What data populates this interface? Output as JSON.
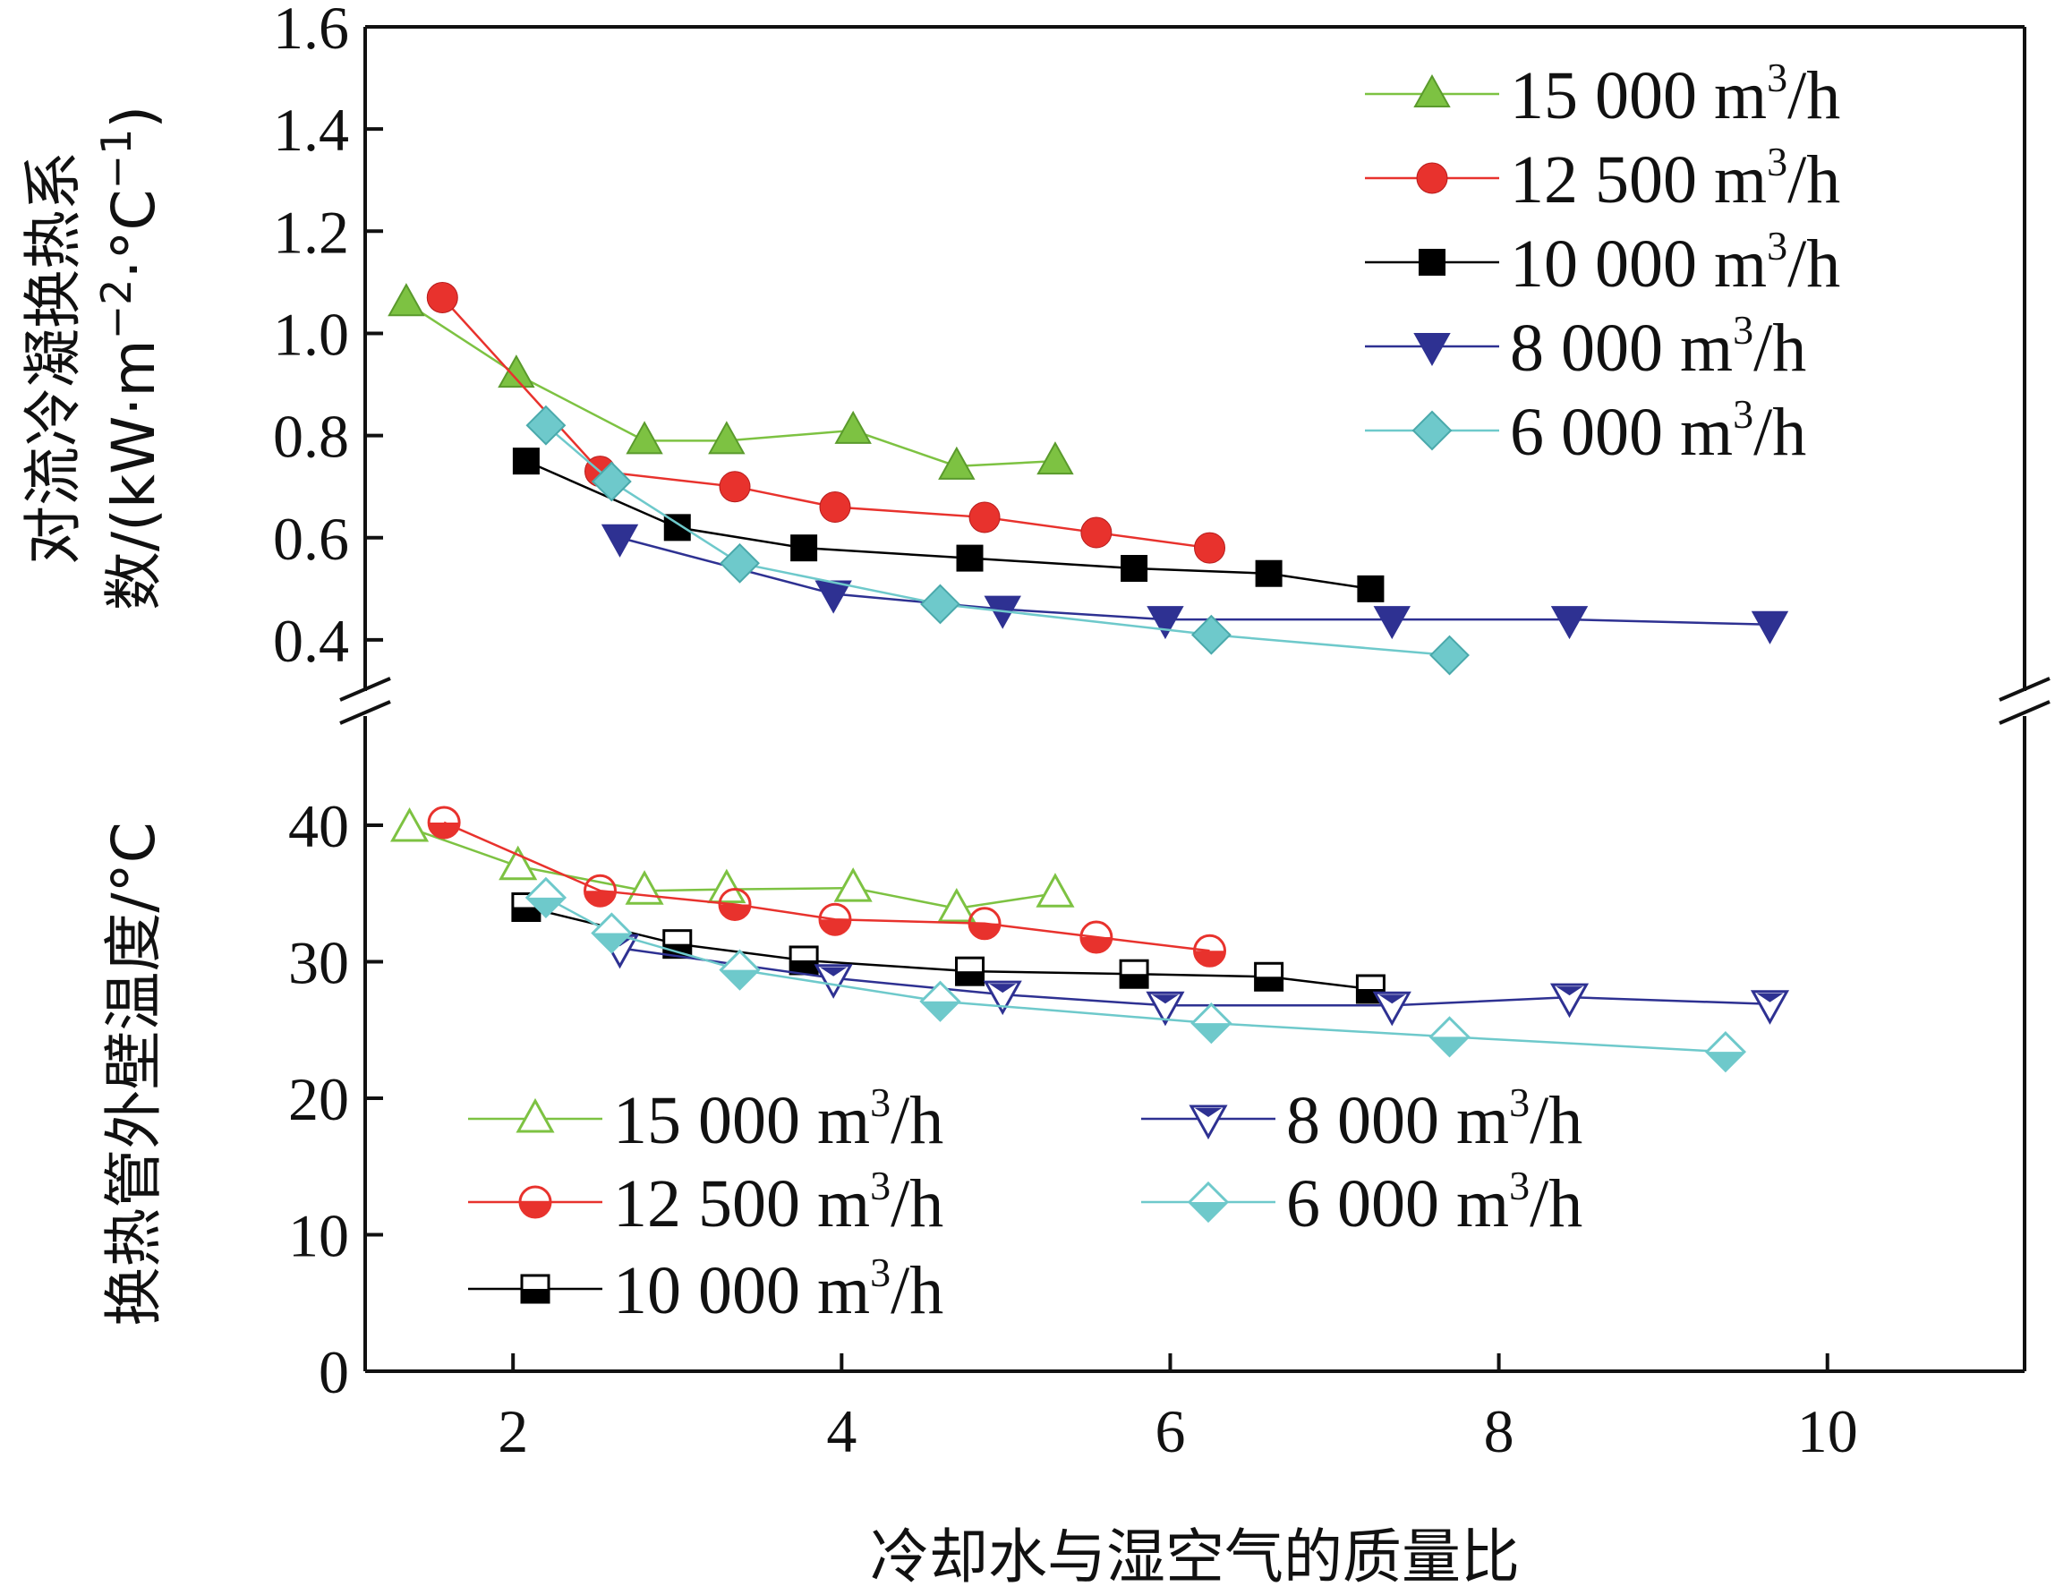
{
  "chart_data": {
    "type": "line",
    "xlabel": "冷却水与湿空气的质量比",
    "xlim": [
      1.1,
      11.2
    ],
    "xticks": [
      2,
      4,
      6,
      8,
      10
    ],
    "upper": {
      "ylabel_line1": "对流冷凝换热系",
      "ylabel_line2": "数/(kW·m",
      "ylabel_exp1": "−2",
      "ylabel_mid": "·°C",
      "ylabel_exp2": "−1",
      "ylabel_end": ")",
      "ylim": [
        0.3,
        1.6
      ],
      "yticks": [
        "0.4",
        "0.6",
        "0.8",
        "1.0",
        "1.2",
        "1.4",
        "1.6"
      ],
      "legend_position": "top-right",
      "series": [
        {
          "name": "15 000",
          "unit": "m",
          "exp": "3",
          "unit_end": "/h",
          "color": "#7dc242",
          "marker": "triangle-up",
          "x": [
            1.35,
            2.02,
            2.8,
            3.3,
            4.07,
            4.7,
            5.3
          ],
          "y": [
            1.06,
            0.92,
            0.79,
            0.79,
            0.81,
            0.74,
            0.75
          ]
        },
        {
          "name": "12 500",
          "unit": "m",
          "exp": "3",
          "unit_end": "/h",
          "color": "#e8322d",
          "marker": "circle",
          "x": [
            1.57,
            2.53,
            3.35,
            3.96,
            4.87,
            5.55,
            6.24
          ],
          "y": [
            1.07,
            0.73,
            0.7,
            0.66,
            0.64,
            0.61,
            0.58
          ]
        },
        {
          "name": "10 000",
          "unit": "m",
          "exp": "3",
          "unit_end": "/h",
          "color": "#000000",
          "marker": "square",
          "x": [
            2.08,
            3.0,
            3.77,
            4.78,
            5.78,
            6.6,
            7.22
          ],
          "y": [
            0.75,
            0.62,
            0.58,
            0.56,
            0.54,
            0.53,
            0.5
          ]
        },
        {
          "name": "8 000",
          "unit": "m",
          "exp": "3",
          "unit_end": "/h",
          "color": "#2e3192",
          "marker": "triangle-down",
          "x": [
            2.65,
            3.95,
            4.98,
            5.97,
            7.35,
            8.43,
            9.65
          ],
          "y": [
            0.6,
            0.49,
            0.46,
            0.44,
            0.44,
            0.44,
            0.43
          ]
        },
        {
          "name": "6 000",
          "unit": "m",
          "exp": "3",
          "unit_end": "/h",
          "color": "#6ec9cb",
          "marker": "diamond",
          "x": [
            2.2,
            2.6,
            3.38,
            4.6,
            6.25,
            7.7
          ],
          "y": [
            0.82,
            0.71,
            0.55,
            0.47,
            0.41,
            0.37
          ]
        }
      ]
    },
    "lower": {
      "ylabel": "换热管外壁温度/°C",
      "ylim": [
        0,
        48
      ],
      "yticks": [
        "0",
        "10",
        "20",
        "30",
        "40"
      ],
      "legend_position": "bottom-left",
      "series": [
        {
          "name": "15 000",
          "unit": "m",
          "exp": "3",
          "unit_end": "/h",
          "color": "#7dc242",
          "marker": "triangle-up-open",
          "x": [
            1.37,
            2.03,
            2.8,
            3.3,
            4.07,
            4.7,
            5.3
          ],
          "y": [
            39.8,
            37.0,
            35.2,
            35.3,
            35.4,
            33.9,
            35.0
          ]
        },
        {
          "name": "12 500",
          "unit": "m",
          "exp": "3",
          "unit_end": "/h",
          "color": "#e8322d",
          "marker": "circle-half",
          "x": [
            1.58,
            2.53,
            3.35,
            3.96,
            4.87,
            5.55,
            6.24
          ],
          "y": [
            40.2,
            35.2,
            34.2,
            33.1,
            32.8,
            31.8,
            30.8
          ]
        },
        {
          "name": "10 000",
          "unit": "m",
          "exp": "3",
          "unit_end": "/h",
          "color": "#000000",
          "marker": "square-half",
          "x": [
            2.08,
            3.0,
            3.77,
            4.78,
            5.78,
            6.6,
            7.22
          ],
          "y": [
            34.0,
            31.3,
            30.1,
            29.3,
            29.1,
            28.9,
            28.0
          ]
        },
        {
          "name": "8 000",
          "unit": "m",
          "exp": "3",
          "unit_end": "/h",
          "color": "#2e3192",
          "marker": "triangle-down-open",
          "x": [
            2.65,
            3.95,
            4.98,
            5.97,
            7.35,
            8.43,
            9.65
          ],
          "y": [
            31.0,
            28.8,
            27.6,
            26.8,
            26.8,
            27.4,
            26.9
          ]
        },
        {
          "name": "6 000",
          "unit": "m",
          "exp": "3",
          "unit_end": "/h",
          "color": "#6ec9cb",
          "marker": "diamond-half",
          "x": [
            2.2,
            2.6,
            3.38,
            4.6,
            6.25,
            7.7,
            9.38
          ],
          "y": [
            34.7,
            32.1,
            29.4,
            27.1,
            25.5,
            24.5,
            23.4
          ]
        }
      ]
    }
  }
}
